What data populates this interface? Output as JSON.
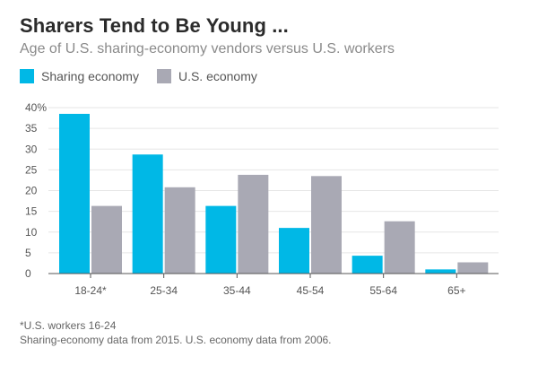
{
  "title": "Sharers Tend to Be Young ...",
  "subtitle": "Age of U.S. sharing-economy vendors versus U.S. workers",
  "colors": {
    "sharing": "#00b8e6",
    "us": "#a9a9b4",
    "grid": "#e6e6e6",
    "axis": "#555555",
    "tick_text": "#555555"
  },
  "chart_data": {
    "type": "bar",
    "categories": [
      "18-24*",
      "25-34",
      "35-44",
      "45-54",
      "55-64",
      "65+"
    ],
    "series": [
      {
        "name": "Sharing economy",
        "values": [
          38.5,
          28.7,
          16.3,
          11,
          4.3,
          1
        ]
      },
      {
        "name": "U.S. economy",
        "values": [
          16.3,
          20.8,
          23.8,
          23.5,
          12.6,
          2.7
        ]
      }
    ],
    "ylim": [
      0,
      40
    ],
    "yticks": [
      0,
      5,
      10,
      15,
      20,
      25,
      30,
      35,
      40
    ],
    "ytick_labels": [
      "0",
      "5",
      "10",
      "15",
      "20",
      "25",
      "30",
      "35",
      "40%"
    ],
    "grid": true,
    "legend_position": "top-left"
  },
  "notes": [
    "*U.S. workers 16-24",
    "Sharing-economy data from 2015. U.S. economy data from 2006."
  ]
}
